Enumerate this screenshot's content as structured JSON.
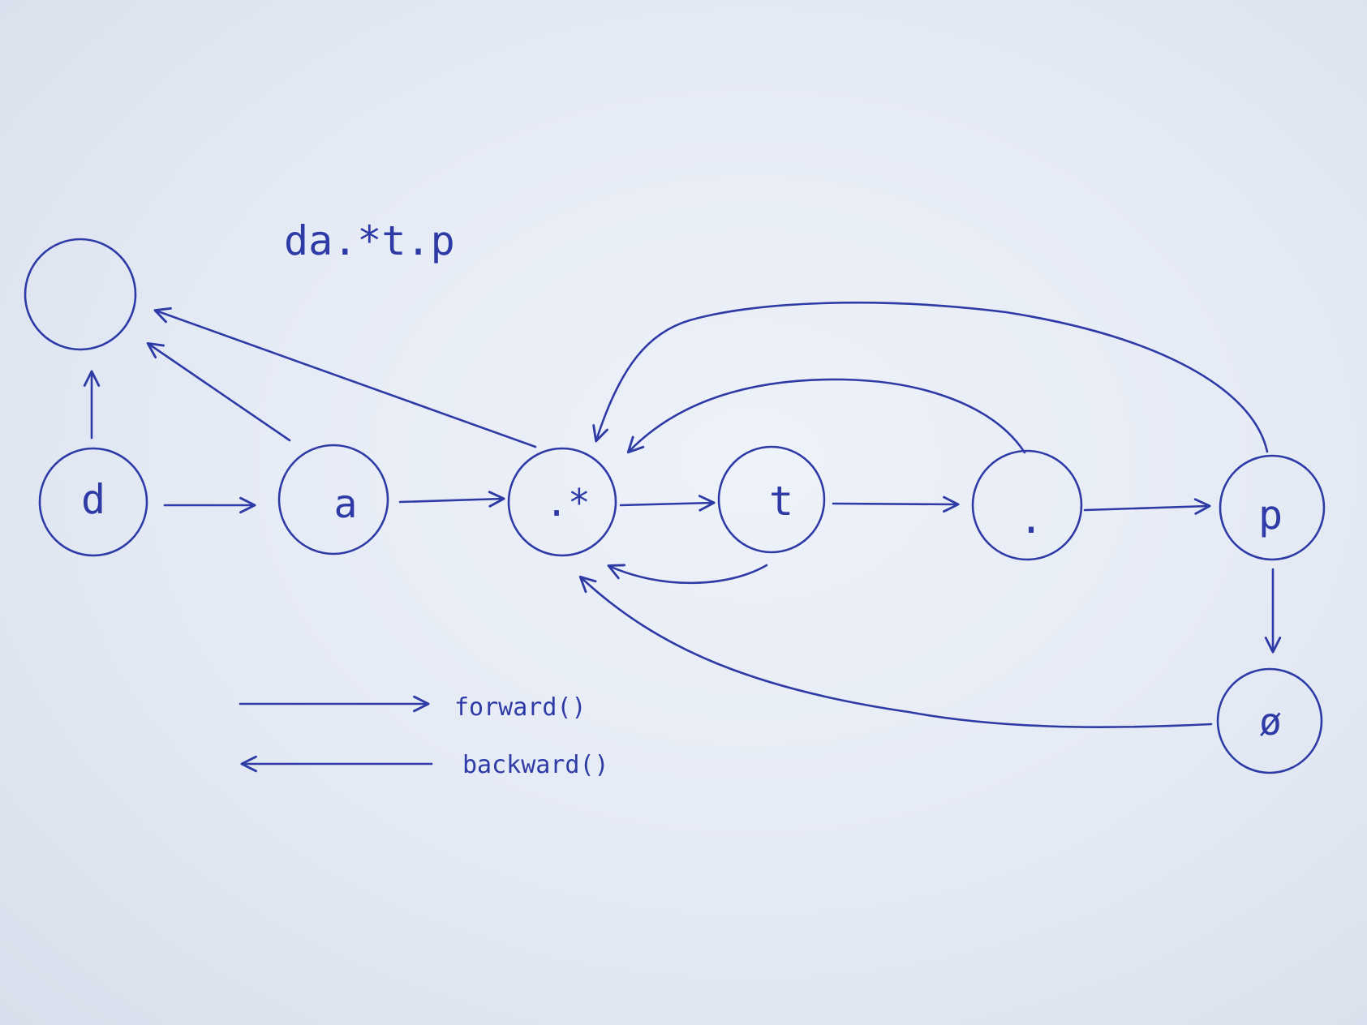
{
  "diagram": {
    "title": "da.*t.p",
    "nodes": [
      {
        "id": "start",
        "label": ""
      },
      {
        "id": "d",
        "label": "d"
      },
      {
        "id": "a",
        "label": "a"
      },
      {
        "id": "dotstar",
        "label": ".*"
      },
      {
        "id": "t",
        "label": "t"
      },
      {
        "id": "dot",
        "label": "."
      },
      {
        "id": "p",
        "label": "p"
      },
      {
        "id": "end",
        "label": "ø"
      }
    ],
    "forward_edges": [
      {
        "from": "d",
        "to": "a"
      },
      {
        "from": "a",
        "to": "dotstar"
      },
      {
        "from": "dotstar",
        "to": "t"
      },
      {
        "from": "t",
        "to": "dot"
      },
      {
        "from": "dot",
        "to": "p"
      },
      {
        "from": "p",
        "to": "end"
      }
    ],
    "backward_edges": [
      {
        "from": "d",
        "to": "start"
      },
      {
        "from": "a",
        "to": "start"
      },
      {
        "from": "dotstar",
        "to": "start"
      },
      {
        "from": "t",
        "to": "dotstar"
      },
      {
        "from": "dot",
        "to": "dotstar"
      },
      {
        "from": "p",
        "to": "dotstar"
      },
      {
        "from": "end",
        "to": "dotstar"
      }
    ],
    "legend": {
      "forward": "forward()",
      "backward": "backward()"
    },
    "ink_color": "#2e3aa6"
  }
}
